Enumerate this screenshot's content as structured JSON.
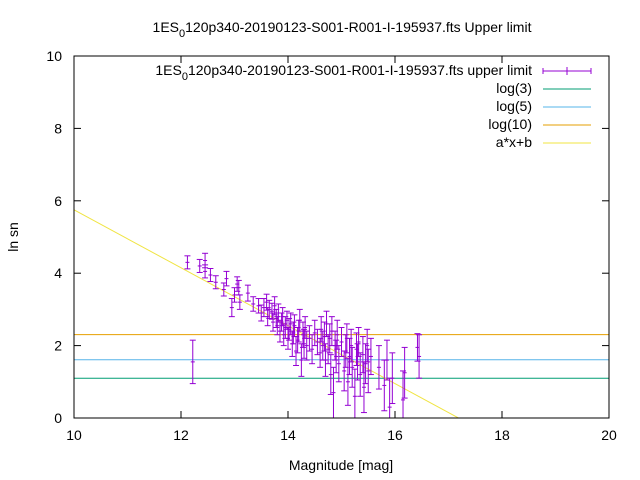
{
  "chart_data": {
    "type": "scatter",
    "title": {
      "prefix": "1ES",
      "subscript": "0",
      "suffix": "120p340-20190123-S001-R001-I-195937.fts Upper limit"
    },
    "xlabel": "Magnitude [mag]",
    "ylabel": "ln sn",
    "xlim": [
      10,
      20
    ],
    "ylim": [
      0,
      10
    ],
    "xticks": [
      10,
      12,
      14,
      16,
      18,
      20
    ],
    "yticks": [
      0,
      2,
      4,
      6,
      8,
      10
    ],
    "grid": false,
    "legend_position": "top-right",
    "series": [
      {
        "name_prefix": "1ES",
        "name_subscript": "0",
        "name_suffix": "120p340-20190123-S001-R001-I-195937.fts upper limit",
        "color": "#9400d3",
        "kind": "errorbars",
        "points": [
          [
            12.12,
            4.3,
            0.18
          ],
          [
            12.22,
            1.55,
            0.6
          ],
          [
            12.35,
            4.2,
            0.18
          ],
          [
            12.45,
            4.35,
            0.2
          ],
          [
            12.45,
            4.05,
            0.18
          ],
          [
            12.55,
            3.95,
            0.18
          ],
          [
            12.65,
            3.75,
            0.18
          ],
          [
            12.8,
            3.55,
            0.18
          ],
          [
            12.85,
            3.85,
            0.2
          ],
          [
            12.95,
            3.05,
            0.25
          ],
          [
            13.0,
            3.4,
            0.2
          ],
          [
            13.05,
            3.7,
            0.2
          ],
          [
            13.08,
            3.6,
            0.2
          ],
          [
            13.1,
            3.2,
            0.2
          ],
          [
            13.25,
            3.45,
            0.22
          ],
          [
            13.35,
            3.15,
            0.2
          ],
          [
            13.45,
            3.1,
            0.2
          ],
          [
            13.5,
            2.9,
            0.22
          ],
          [
            13.55,
            3.05,
            0.25
          ],
          [
            13.6,
            3.2,
            0.22
          ],
          [
            13.62,
            2.8,
            0.25
          ],
          [
            13.65,
            3.0,
            0.25
          ],
          [
            13.7,
            2.95,
            0.22
          ],
          [
            13.72,
            2.65,
            0.25
          ],
          [
            13.75,
            3.1,
            0.25
          ],
          [
            13.78,
            2.75,
            0.25
          ],
          [
            13.8,
            2.55,
            0.25
          ],
          [
            13.82,
            2.9,
            0.25
          ],
          [
            13.85,
            2.4,
            0.3
          ],
          [
            13.88,
            2.65,
            0.25
          ],
          [
            13.9,
            2.8,
            0.25
          ],
          [
            13.92,
            2.3,
            0.3
          ],
          [
            13.95,
            2.5,
            0.3
          ],
          [
            13.98,
            2.7,
            0.25
          ],
          [
            14.0,
            2.2,
            0.3
          ],
          [
            14.02,
            2.45,
            0.3
          ],
          [
            14.05,
            2.6,
            0.3
          ],
          [
            14.08,
            2.05,
            0.35
          ],
          [
            14.1,
            2.35,
            0.3
          ],
          [
            14.12,
            2.55,
            0.3
          ],
          [
            14.15,
            1.85,
            0.4
          ],
          [
            14.18,
            2.15,
            0.35
          ],
          [
            14.2,
            2.4,
            0.3
          ],
          [
            14.22,
            2.7,
            0.3
          ],
          [
            14.25,
            1.6,
            0.45
          ],
          [
            14.28,
            2.3,
            0.35
          ],
          [
            14.3,
            2.05,
            0.4
          ],
          [
            14.32,
            2.5,
            0.3
          ],
          [
            14.35,
            2.0,
            0.4
          ],
          [
            14.4,
            2.2,
            0.35
          ],
          [
            14.45,
            1.9,
            0.4
          ],
          [
            14.5,
            2.35,
            0.35
          ],
          [
            14.55,
            2.1,
            0.35
          ],
          [
            14.6,
            1.8,
            0.4
          ],
          [
            14.62,
            2.45,
            0.35
          ],
          [
            14.65,
            2.0,
            0.4
          ],
          [
            14.68,
            2.25,
            0.4
          ],
          [
            14.7,
            1.6,
            0.45
          ],
          [
            14.72,
            2.6,
            0.35
          ],
          [
            14.75,
            1.9,
            0.4
          ],
          [
            14.78,
            2.2,
            0.4
          ],
          [
            14.8,
            1.2,
            0.55
          ],
          [
            14.82,
            2.4,
            0.4
          ],
          [
            14.85,
            0.7,
            0.7
          ],
          [
            14.88,
            2.0,
            0.4
          ],
          [
            14.9,
            1.7,
            0.45
          ],
          [
            14.92,
            2.3,
            0.4
          ],
          [
            14.95,
            1.5,
            0.5
          ],
          [
            15.0,
            2.1,
            0.4
          ],
          [
            15.05,
            1.3,
            0.55
          ],
          [
            15.08,
            1.85,
            0.45
          ],
          [
            15.1,
            2.2,
            0.4
          ],
          [
            15.12,
            1.0,
            0.65
          ],
          [
            15.15,
            1.7,
            0.5
          ],
          [
            15.18,
            2.0,
            0.45
          ],
          [
            15.2,
            1.4,
            0.55
          ],
          [
            15.25,
            0.6,
            0.75
          ],
          [
            15.28,
            1.9,
            0.45
          ],
          [
            15.3,
            1.55,
            0.5
          ],
          [
            15.32,
            2.1,
            0.4
          ],
          [
            15.35,
            1.2,
            0.6
          ],
          [
            15.4,
            1.75,
            0.5
          ],
          [
            15.42,
            0.85,
            0.7
          ],
          [
            15.45,
            1.5,
            0.55
          ],
          [
            15.48,
            2.0,
            0.45
          ],
          [
            15.5,
            1.3,
            0.6
          ],
          [
            15.55,
            1.7,
            0.5
          ],
          [
            15.7,
            1.4,
            0.6
          ],
          [
            15.8,
            0.9,
            0.7
          ],
          [
            15.85,
            1.6,
            0.55
          ],
          [
            15.9,
            0.3,
            0.8
          ],
          [
            15.95,
            1.1,
            0.7
          ],
          [
            16.15,
            0.5,
            0.8
          ],
          [
            16.18,
            1.25,
            0.7
          ],
          [
            16.42,
            1.95,
            0.38
          ],
          [
            16.45,
            1.7,
            0.6
          ]
        ]
      },
      {
        "name": "log(3)",
        "color": "#009e73",
        "kind": "hline",
        "y": 1.0986
      },
      {
        "name": "log(5)",
        "color": "#56b4e9",
        "kind": "hline",
        "y": 1.6094
      },
      {
        "name": "log(10)",
        "color": "#e69f00",
        "kind": "hline",
        "y": 2.3026
      },
      {
        "name": "a*x+b",
        "color": "#f0e442",
        "kind": "fitline",
        "a": -0.8,
        "b": 13.75
      }
    ]
  }
}
